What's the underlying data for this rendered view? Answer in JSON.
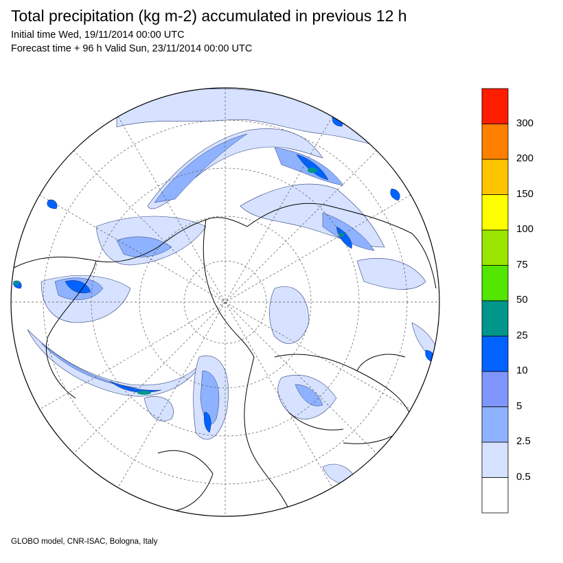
{
  "title": "Total precipitation (kg m-2) accumulated in previous 12 h",
  "initial_time": "Initial time Wed, 19/11/2014 00:00 UTC",
  "forecast_time": "Forecast time + 96 h Valid Sun, 23/11/2014 00:00 UTC",
  "footer": "GLOBO model, CNR-ISAC, Bologna, Italy",
  "legend": {
    "labels": [
      "0.5",
      "2.5",
      "5",
      "10",
      "25",
      "50",
      "75",
      "100",
      "150",
      "200",
      "300"
    ],
    "colors": [
      "#ffffff",
      "#d6e2ff",
      "#8eb2ff",
      "#7f96ff",
      "#0063ff",
      "#00968c",
      "#52e600",
      "#9ae600",
      "#ffff00",
      "#ffc400",
      "#ff7f00",
      "#ff1d00"
    ]
  }
}
